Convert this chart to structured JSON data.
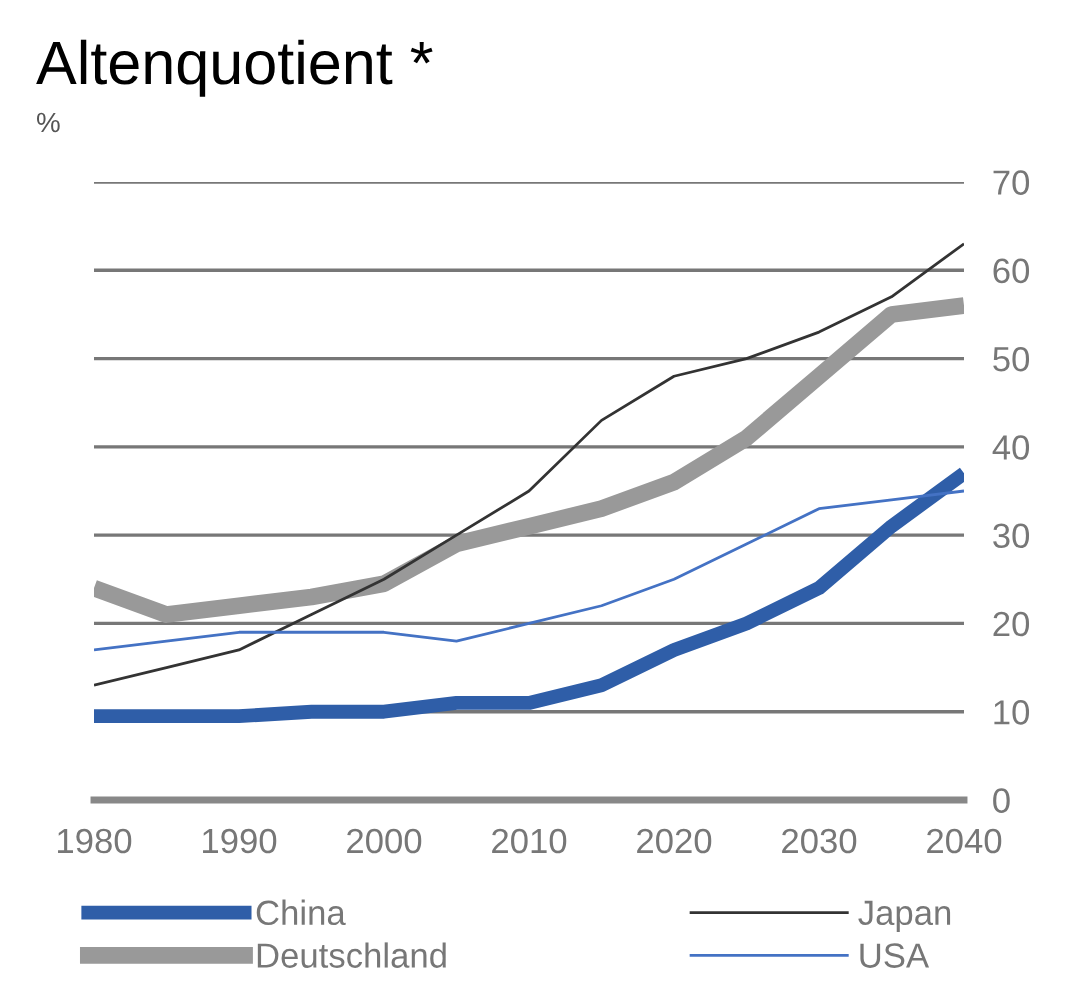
{
  "chart_data": {
    "type": "line",
    "title": "Altenquotient *",
    "ylabel": "%",
    "x": [
      1980,
      1985,
      1990,
      1995,
      2000,
      2005,
      2010,
      2015,
      2020,
      2025,
      2030,
      2035,
      2040
    ],
    "series": [
      {
        "name": "China",
        "color": "#2f5ea8",
        "values": [
          9.5,
          9.5,
          9.5,
          10,
          10,
          11,
          11,
          13,
          17,
          20,
          24,
          31,
          37
        ]
      },
      {
        "name": "Deutschland",
        "color": "#999999",
        "values": [
          24,
          21,
          22,
          23,
          24.5,
          29,
          31,
          33,
          36,
          41,
          48,
          55,
          56
        ]
      },
      {
        "name": "Japan",
        "color": "#333333",
        "values": [
          13,
          15,
          17,
          21,
          25,
          30,
          35,
          43,
          48,
          50,
          53,
          57,
          63
        ]
      },
      {
        "name": "USA",
        "color": "#4472c4",
        "values": [
          17,
          18,
          19,
          19,
          19,
          18,
          20,
          22,
          25,
          29,
          33,
          34,
          35
        ]
      }
    ],
    "xlim": [
      1980,
      2040
    ],
    "xticks": [
      1980,
      1990,
      2000,
      2010,
      2020,
      2030,
      2040
    ],
    "ylim": [
      0,
      70
    ],
    "yticks": [
      0,
      10,
      20,
      30,
      40,
      50,
      60,
      70
    ],
    "grid": "y",
    "legend": "bottom",
    "marker": "none",
    "line_style": "solid"
  }
}
